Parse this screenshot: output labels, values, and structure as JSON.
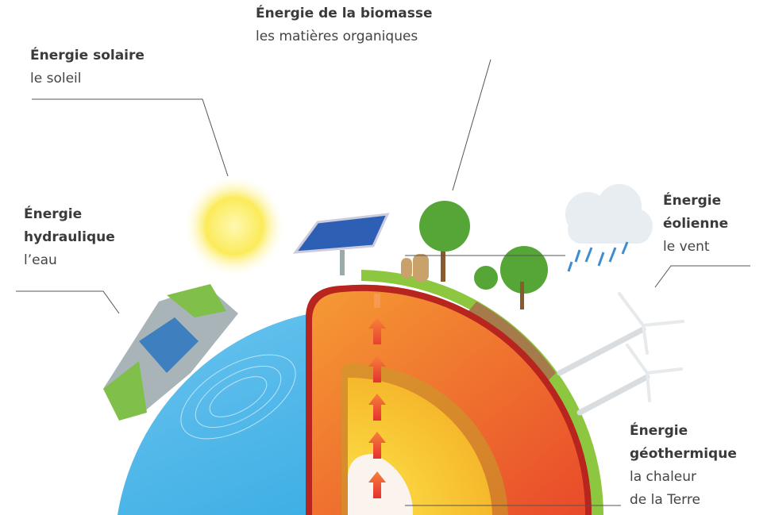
{
  "labels": {
    "solar": {
      "title_lines": [
        "Énergie solaire"
      ],
      "subtitle_lines": [
        "le soleil"
      ]
    },
    "biomass": {
      "title_lines": [
        "Énergie de la biomasse"
      ],
      "subtitle_lines": [
        "les matières organiques"
      ]
    },
    "hydraulic": {
      "title_lines": [
        "Énergie",
        "hydraulique"
      ],
      "subtitle_lines": [
        "l’eau"
      ]
    },
    "wind": {
      "title_lines": [
        "Énergie",
        "éolienne"
      ],
      "subtitle_lines": [
        "le vent"
      ]
    },
    "geothermal": {
      "title_lines": [
        "Énergie",
        "géothermique"
      ],
      "subtitle_lines": [
        "la chaleur",
        "de la Terre"
      ]
    }
  }
}
